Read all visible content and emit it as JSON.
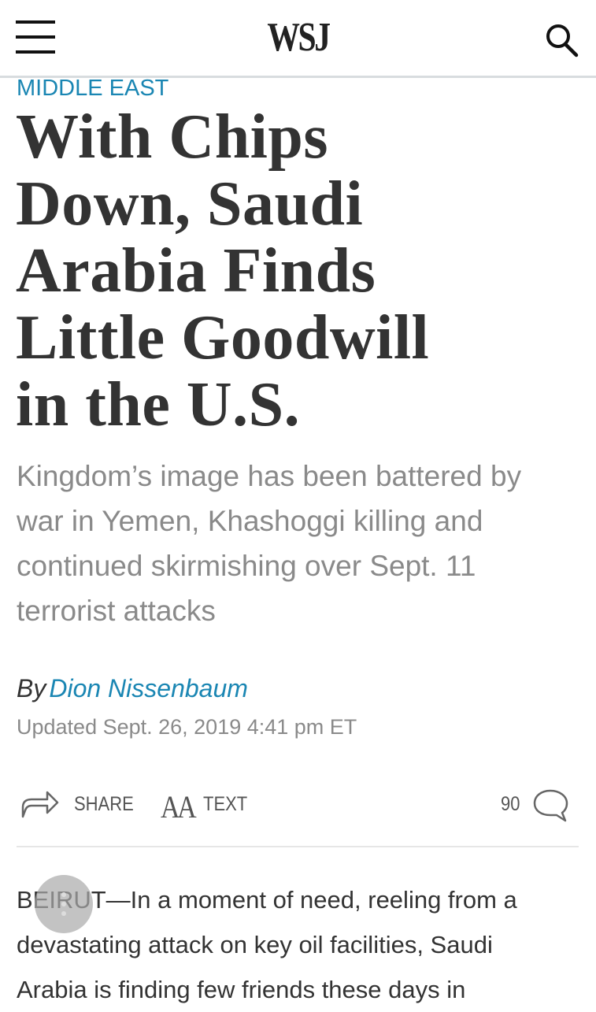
{
  "header": {
    "logo": "WSJ",
    "menu_icon": "hamburger-icon",
    "search_icon": "search-icon"
  },
  "article": {
    "section": "MIDDLE EAST",
    "headline_lines": [
      "With Chips",
      "Down, Saudi",
      "Arabia Finds",
      "Little Goodwill",
      "in the U.S."
    ],
    "dek_lines": [
      "Kingdom’s image has been battered by",
      "war in Yemen, Khashoggi killing and",
      "continued skirmishing over Sept. 11",
      "terrorist attacks"
    ],
    "byline_prefix": "By",
    "author": "Dion Nissenbaum",
    "updated": "Updated Sept. 26, 2019 4:41 pm ET",
    "body_lines": [
      "BEIRUT—In a moment of need, reeling from a",
      "devastating attack on key oil facilities, Saudi",
      "Arabia is finding few friends these days in"
    ]
  },
  "tools": {
    "share_label": "SHARE",
    "text_label": "TEXT",
    "text_icon_glyph": "AA",
    "comment_count": "90"
  },
  "colors": {
    "accent": "#1a86b3",
    "headline": "#333333",
    "dek": "#8a8a8a"
  }
}
